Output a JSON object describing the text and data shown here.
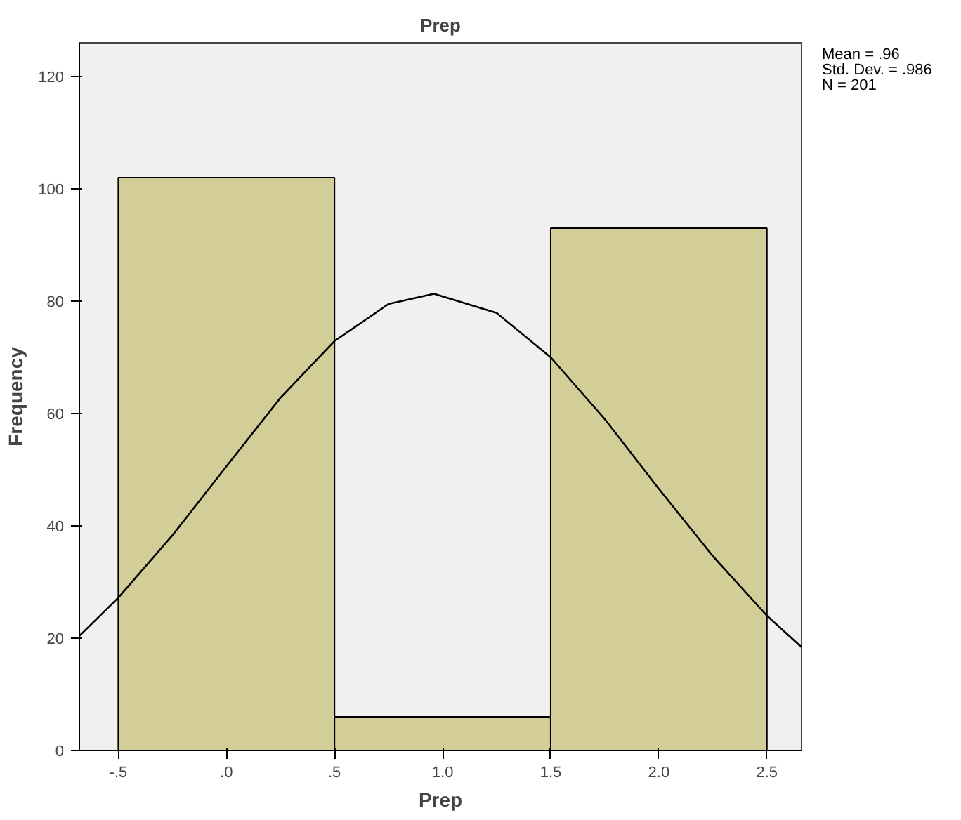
{
  "chart_data": {
    "type": "histogram",
    "title": "Prep",
    "xlabel": "Prep",
    "ylabel": "Frequency",
    "xlim": [
      -0.68,
      2.66
    ],
    "ylim": [
      0,
      126
    ],
    "xticks": [
      {
        "value": -0.5,
        "label": "-.5"
      },
      {
        "value": 0,
        "label": ".0"
      },
      {
        "value": 0.5,
        "label": ".5"
      },
      {
        "value": 1,
        "label": "1.0"
      },
      {
        "value": 1.5,
        "label": "1.5"
      },
      {
        "value": 2,
        "label": "2.0"
      },
      {
        "value": 2.5,
        "label": "2.5"
      }
    ],
    "yticks": [
      0,
      20,
      40,
      60,
      80,
      100,
      120
    ],
    "grid": false,
    "series": [
      {
        "bins": [
          -0.5,
          0.5,
          1.5,
          2.5
        ],
        "values": [
          102,
          6,
          93
        ],
        "color": "#d3ce97"
      },
      {
        "type": "line",
        "x": [
          -0.68,
          -0.5,
          -0.25,
          0,
          0.25,
          0.5,
          0.75,
          0.96,
          1.25,
          1.5,
          1.75,
          2,
          2.25,
          2.5,
          2.66
        ],
        "values": [
          20.4,
          27.2,
          38.3,
          50.6,
          62.8,
          72.9,
          79.5,
          81.3,
          77.9,
          70.0,
          59.0,
          46.6,
          34.6,
          24.0,
          18.4
        ],
        "color": "#000000"
      }
    ],
    "annotations": [
      "Mean = .96",
      "Std. Dev. = .986",
      "N = 201"
    ]
  }
}
